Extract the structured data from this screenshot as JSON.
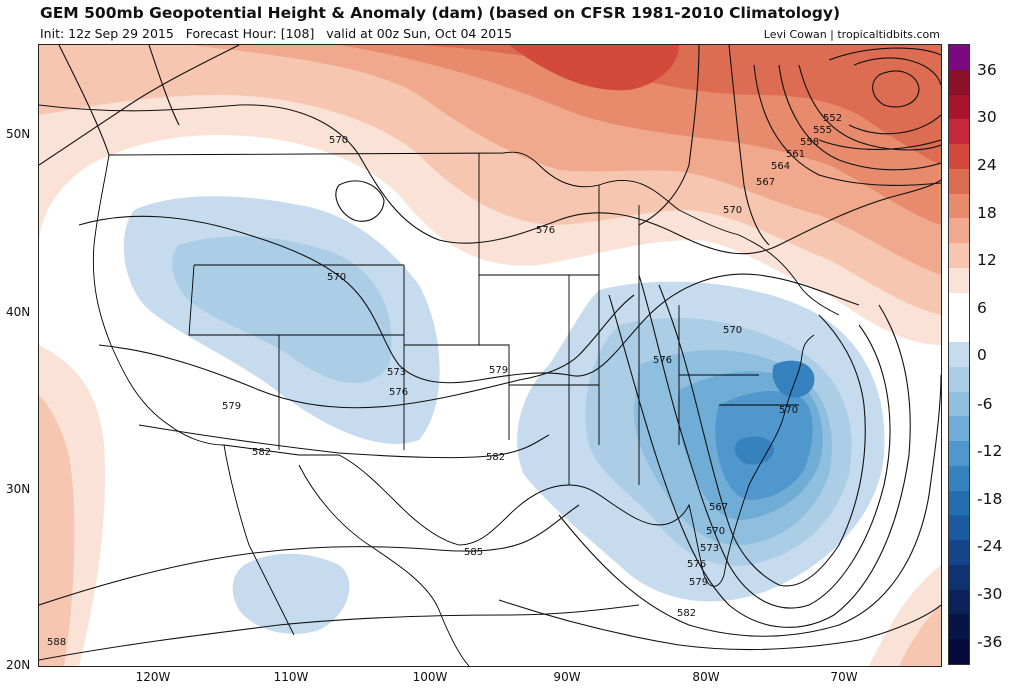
{
  "header": {
    "title": "GEM 500mb Geopotential Height & Anomaly (dam) (based on CFSR 1981-2010 Climatology)",
    "init": "Init: 12z Sep 29 2015",
    "forecast_hour": "Forecast Hour: [108]",
    "valid": "valid at 00z Sun, Oct 04 2015",
    "credit": "Levi Cowan | tropicaltidbits.com"
  },
  "axes": {
    "lat_labels": [
      "50N",
      "40N",
      "30N",
      "20N"
    ],
    "lon_labels": [
      "120W",
      "110W",
      "100W",
      "90W",
      "80W",
      "70W"
    ]
  },
  "contour_labels": [
    "570",
    "576",
    "570",
    "573",
    "576",
    "579",
    "579",
    "582",
    "582",
    "585",
    "588",
    "552",
    "555",
    "558",
    "561",
    "564",
    "567",
    "570",
    "576",
    "570",
    "570",
    "567",
    "570",
    "573",
    "576",
    "579",
    "582",
    "585"
  ],
  "colorbar": {
    "labels": [
      "36",
      "30",
      "24",
      "18",
      "12",
      "6",
      "0",
      "-6",
      "-12",
      "-18",
      "-24",
      "-30",
      "-36"
    ],
    "colors": [
      "#7b0a82",
      "#8c1026",
      "#a8142e",
      "#c4283a",
      "#d34a3d",
      "#dd6d52",
      "#e88a6c",
      "#f0a98c",
      "#f6c6b0",
      "#fbe2d6",
      "#ffffff",
      "#ffffff",
      "#c6dbed",
      "#abcde6",
      "#8fbfdf",
      "#6fadd6",
      "#4f97cc",
      "#3582bf",
      "#246eb0",
      "#1b5a9e",
      "#154488",
      "#0f3370",
      "#0a2258",
      "#071546",
      "#050c3c"
    ],
    "positive_color": "#e07a5f",
    "negative_color": "#3c87c4"
  }
}
